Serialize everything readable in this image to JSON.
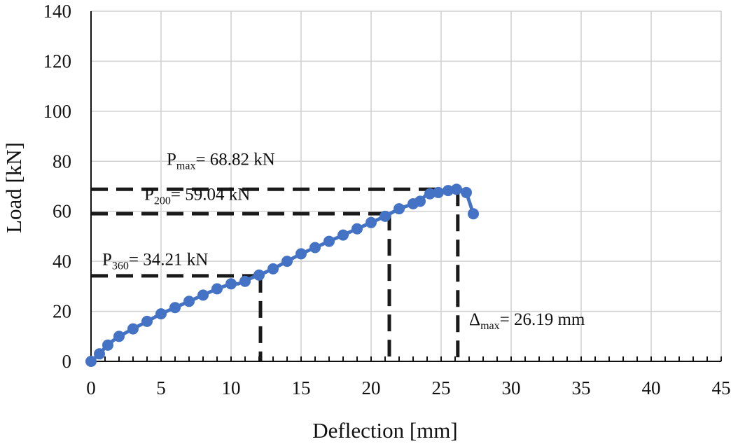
{
  "chart_data": {
    "type": "line",
    "title": "",
    "xlabel": "Deflection [mm]",
    "ylabel": "Load [kN]",
    "xlim": [
      0,
      45
    ],
    "ylim": [
      0,
      140
    ],
    "xticks": [
      0,
      5,
      10,
      15,
      20,
      25,
      30,
      35,
      40,
      45
    ],
    "yticks": [
      0,
      20,
      40,
      60,
      80,
      100,
      120,
      140
    ],
    "grid": true,
    "legend": "none",
    "series": [
      {
        "color": "#4472c4",
        "x": [
          0,
          0.3,
          0.6,
          1,
          1.5,
          2,
          3,
          4,
          5,
          6,
          7,
          8,
          9,
          10,
          10.5,
          11,
          11.5,
          12,
          13,
          14,
          15,
          16,
          17,
          18,
          19,
          20,
          21,
          22,
          23,
          23.5,
          24,
          24.5,
          25,
          25.5,
          26,
          26.5,
          26.8,
          27.3
        ],
        "y": [
          0,
          1.5,
          3,
          5.5,
          8,
          10,
          13,
          16,
          19,
          21.5,
          24,
          26.5,
          29,
          31,
          31,
          32,
          33.5,
          34.5,
          37,
          40,
          43,
          45.5,
          48,
          50.5,
          53,
          55.5,
          58,
          61,
          63,
          64,
          67,
          67.5,
          68,
          68.3,
          68.8,
          68.5,
          67.5,
          59
        ]
      }
    ],
    "markers": [
      {
        "x": 0,
        "y": 0
      },
      {
        "x": 0.6,
        "y": 3
      },
      {
        "x": 1.2,
        "y": 6.5
      },
      {
        "x": 2,
        "y": 10
      },
      {
        "x": 3,
        "y": 13
      },
      {
        "x": 4,
        "y": 16
      },
      {
        "x": 5,
        "y": 19
      },
      {
        "x": 6,
        "y": 21.5
      },
      {
        "x": 7,
        "y": 24
      },
      {
        "x": 8,
        "y": 26.5
      },
      {
        "x": 9,
        "y": 29
      },
      {
        "x": 10,
        "y": 31
      },
      {
        "x": 11,
        "y": 32
      },
      {
        "x": 12,
        "y": 34.5
      },
      {
        "x": 13,
        "y": 37
      },
      {
        "x": 14,
        "y": 40
      },
      {
        "x": 15,
        "y": 43
      },
      {
        "x": 16,
        "y": 45.5
      },
      {
        "x": 17,
        "y": 48
      },
      {
        "x": 18,
        "y": 50.5
      },
      {
        "x": 19,
        "y": 53
      },
      {
        "x": 20,
        "y": 55.5
      },
      {
        "x": 21,
        "y": 58
      },
      {
        "x": 22,
        "y": 61
      },
      {
        "x": 23,
        "y": 63
      },
      {
        "x": 23.5,
        "y": 64
      },
      {
        "x": 24.2,
        "y": 67
      },
      {
        "x": 24.8,
        "y": 67.5
      },
      {
        "x": 25.5,
        "y": 68.3
      },
      {
        "x": 26.1,
        "y": 68.8
      },
      {
        "x": 26.8,
        "y": 67.5
      },
      {
        "x": 27.3,
        "y": 59
      }
    ],
    "reference_lines": [
      {
        "y": 68.82,
        "x_end": 26.19
      },
      {
        "y": 59.04,
        "x_end": 21.3
      },
      {
        "y": 34.21,
        "x_end": 12.1
      }
    ],
    "annotations": [
      {
        "main": "P",
        "sub": "max",
        "rest": "= 68.82 kN",
        "x": 5.4,
        "y": 78.5
      },
      {
        "main": "P",
        "sub": "200",
        "rest": "= 59.04 kN",
        "x": 3.8,
        "y": 64.5
      },
      {
        "main": "P",
        "sub": "360",
        "rest": "= 34.21 kN",
        "x": 0.8,
        "y": 38.5
      },
      {
        "main": "Δ",
        "sub": "max",
        "rest": "= 26.19 mm",
        "x": 27.0,
        "y": 14.5
      }
    ]
  }
}
